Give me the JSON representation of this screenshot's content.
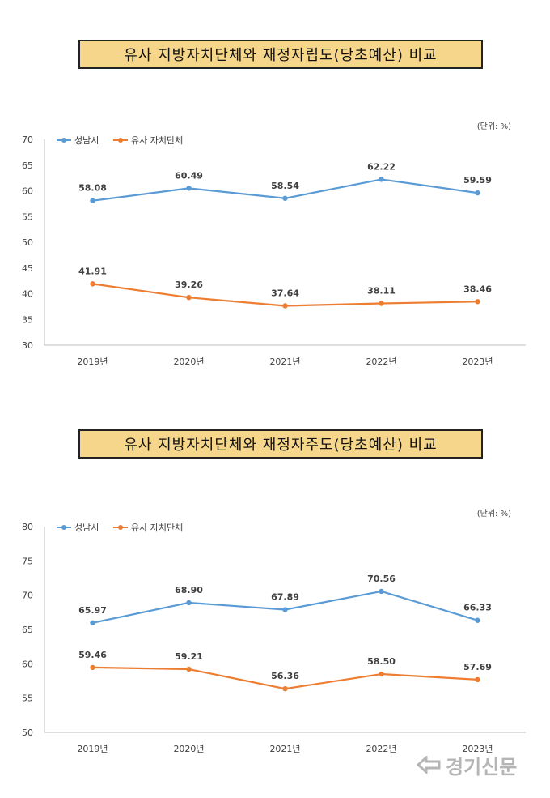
{
  "colors": {
    "seongnam": "#5b9bd5",
    "similar": "#ed7d31",
    "title_bg": "#f6d68a"
  },
  "chart_data": [
    {
      "type": "line",
      "title": "유사 지방자치단체와 재정자립도(당초예산) 비교",
      "unit_label": "(단위: %)",
      "categories": [
        "2019년",
        "2020년",
        "2021년",
        "2022년",
        "2023년"
      ],
      "series": [
        {
          "name": "성남시",
          "values": [
            58.08,
            60.49,
            58.54,
            62.22,
            59.59
          ],
          "labels": [
            "58.08",
            "60.49",
            "58.54",
            "62.22",
            "59.59"
          ]
        },
        {
          "name": "유사 자치단체",
          "values": [
            41.91,
            39.26,
            37.64,
            38.11,
            38.46
          ],
          "labels": [
            "41.91",
            "39.26",
            "37.64",
            "38.11",
            "38.46"
          ]
        }
      ],
      "ylim": [
        30,
        70
      ],
      "yticks": [
        30,
        35,
        40,
        45,
        50,
        55,
        60,
        65,
        70
      ],
      "legend": "top-left",
      "grid": false
    },
    {
      "type": "line",
      "title": "유사 지방자치단체와 재정자주도(당초예산) 비교",
      "unit_label": "(단위: %)",
      "categories": [
        "2019년",
        "2020년",
        "2021년",
        "2022년",
        "2023년"
      ],
      "series": [
        {
          "name": "성남시",
          "values": [
            65.97,
            68.9,
            67.89,
            70.56,
            66.33
          ],
          "labels": [
            "65.97",
            "68.90",
            "67.89",
            "70.56",
            "66.33"
          ]
        },
        {
          "name": "유사 자치단체",
          "values": [
            59.46,
            59.21,
            56.36,
            58.5,
            57.69
          ],
          "labels": [
            "59.46",
            "59.21",
            "56.36",
            "58.50",
            "57.69"
          ]
        }
      ],
      "ylim": [
        50,
        80
      ],
      "yticks": [
        50,
        55,
        60,
        65,
        70,
        75,
        80
      ],
      "legend": "top-left",
      "grid": false
    }
  ],
  "watermark": {
    "text": "경기신문"
  }
}
